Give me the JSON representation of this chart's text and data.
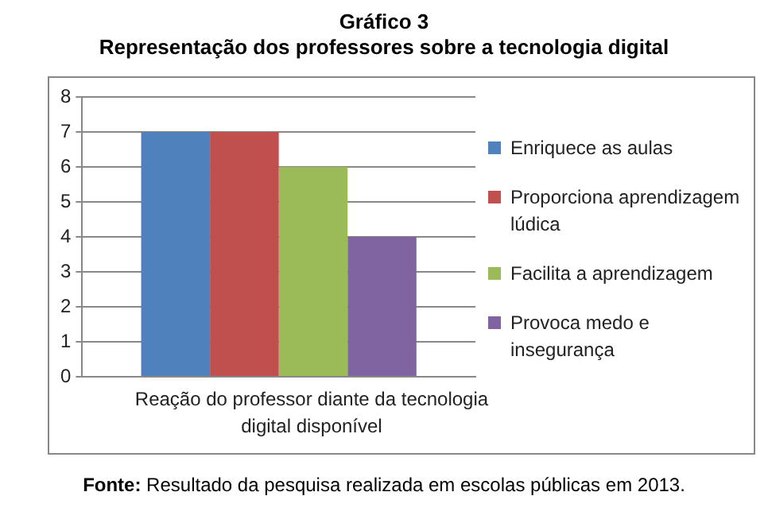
{
  "chart_data": {
    "type": "bar",
    "title": "Gráfico 3",
    "subtitle": "Representação dos professores sobre a tecnologia digital",
    "categories": [
      "Reação do professor diante da tecnologia digital disponível"
    ],
    "series": [
      {
        "name": "Enriquece as aulas",
        "color": "#4f81bd",
        "values": [
          7
        ]
      },
      {
        "name": "Proporciona aprendizagem lúdica",
        "color": "#c0504d",
        "values": [
          7
        ]
      },
      {
        "name": "Facilita a aprendizagem",
        "color": "#9bbb59",
        "values": [
          6
        ]
      },
      {
        "name": "Provoca medo e insegurança",
        "color": "#8064a2",
        "values": [
          4
        ]
      }
    ],
    "ylim": [
      0,
      8
    ],
    "yticks": [
      0,
      1,
      2,
      3,
      4,
      5,
      6,
      7,
      8
    ],
    "grid": "y",
    "legend": "right",
    "annotations": [
      "Fonte: Resultado da pesquisa realizada em escolas públicas em 2013."
    ]
  }
}
